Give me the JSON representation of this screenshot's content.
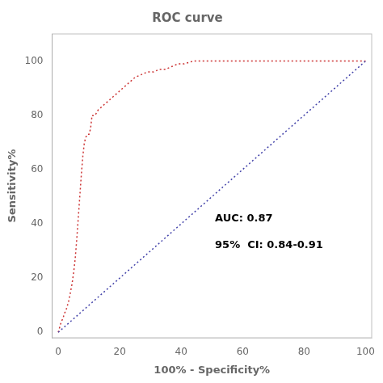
{
  "chart_data": {
    "type": "line",
    "title": "ROC curve",
    "xlabel": "100% - Specificity%",
    "ylabel": "Sensitivity%",
    "xlim": [
      -2,
      102
    ],
    "ylim": [
      -2,
      110
    ],
    "xticks": [
      0,
      20,
      40,
      60,
      80,
      100
    ],
    "yticks": [
      0,
      20,
      40,
      60,
      80,
      100
    ],
    "grid": false,
    "series": [
      {
        "color": "#4444aa",
        "line_style": "dotted",
        "x": [
          0,
          100
        ],
        "values": [
          0,
          100
        ]
      },
      {
        "color": "#cc3333",
        "line_style": "dotted",
        "x": [
          0,
          0.5,
          1,
          1.5,
          2,
          2.5,
          3,
          3.5,
          4,
          4.5,
          5,
          5.5,
          6,
          6.5,
          7,
          7.5,
          8,
          8.5,
          9,
          9.5,
          10,
          10.5,
          11,
          11.5,
          12,
          13,
          14,
          15,
          16,
          17,
          18,
          19,
          20,
          21,
          22,
          23,
          24,
          25,
          27,
          29,
          31,
          33,
          35,
          37,
          39,
          41,
          44,
          47,
          50,
          55,
          60,
          70,
          80,
          90,
          100
        ],
        "values": [
          0,
          2,
          4,
          5,
          7,
          8,
          10,
          12,
          15,
          18,
          22,
          27,
          34,
          42,
          50,
          58,
          65,
          70,
          72,
          73,
          73,
          75,
          80,
          80,
          80,
          82,
          83,
          84,
          85,
          86,
          87,
          88,
          89,
          90,
          91,
          92,
          93,
          94,
          95,
          96,
          96,
          97,
          97,
          98,
          99,
          99,
          100,
          100,
          100,
          100,
          100,
          100,
          100,
          100,
          100
        ]
      }
    ],
    "annotations": [
      {
        "text": "AUC: 0.87",
        "x": 51,
        "y": 42
      },
      {
        "text": "95%  CI: 0.84-0.91",
        "x": 51,
        "y": 32
      }
    ]
  }
}
